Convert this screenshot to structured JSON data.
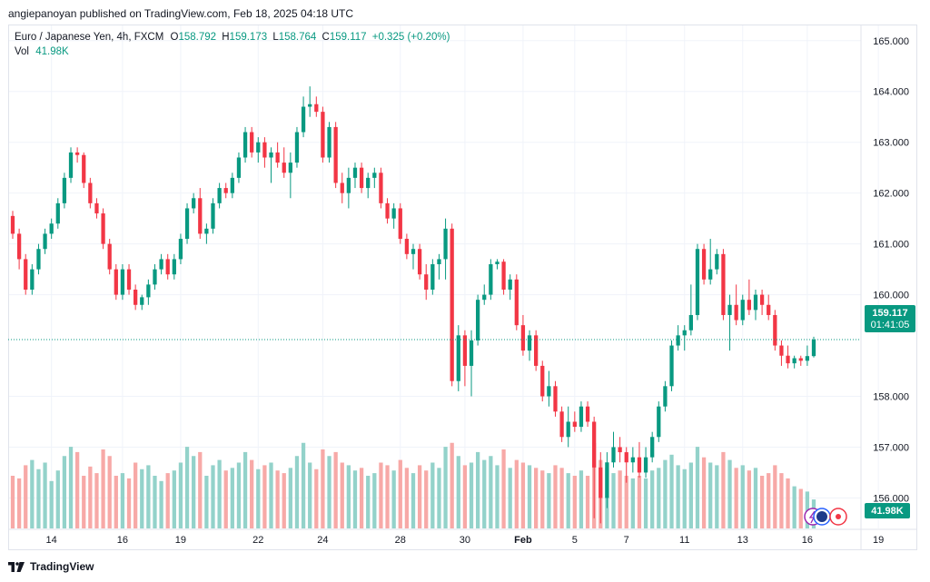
{
  "publisher_line": "angiepanoyan published on TradingView.com, Feb 18, 2025 04:18 UTC",
  "footer": {
    "brand": "TradingView"
  },
  "legend": {
    "symbol": "Euro / Japanese Yen, 4h, FXCM",
    "o_label": "O",
    "o_value": "158.792",
    "h_label": "H",
    "h_value": "159.173",
    "l_label": "L",
    "l_value": "158.764",
    "c_label": "C",
    "c_value": "159.117",
    "change": "+0.325 (+0.20%)",
    "vol_label": "Vol",
    "vol_value": "41.98K"
  },
  "badges": {
    "price": "159.117",
    "countdown": "01:41:05",
    "volume": "41.98K"
  },
  "colors": {
    "up": "#089981",
    "down": "#f23645",
    "up_vol": "#93d2ca",
    "down_vol": "#f7a9a7",
    "grid": "#f0f3fa",
    "axis_text": "#131722"
  },
  "chart_data": {
    "type": "candlestick",
    "symbol": "EUR/JPY",
    "interval": "4h",
    "source": "FXCM",
    "ylim": [
      155.4,
      165.3
    ],
    "y_ticks": [
      "165.000",
      "164.000",
      "163.000",
      "162.000",
      "161.000",
      "160.000",
      "158.000",
      "157.000",
      "156.000"
    ],
    "x_ticks": [
      "14",
      "16",
      "19",
      "22",
      "24",
      "28",
      "30",
      "Feb",
      "5",
      "7",
      "11",
      "13",
      "16",
      "19"
    ],
    "last_price": 159.117,
    "volume_unit": "relative",
    "candles": [
      [
        161.55,
        161.65,
        161.1,
        161.2,
        40
      ],
      [
        161.2,
        161.3,
        160.5,
        160.7,
        38
      ],
      [
        160.7,
        160.8,
        160.0,
        160.1,
        48
      ],
      [
        160.1,
        160.6,
        160.0,
        160.5,
        52
      ],
      [
        160.5,
        161.0,
        160.4,
        160.9,
        45
      ],
      [
        160.9,
        161.3,
        160.8,
        161.2,
        50
      ],
      [
        161.2,
        161.5,
        161.1,
        161.4,
        36
      ],
      [
        161.4,
        161.9,
        161.3,
        161.8,
        44
      ],
      [
        161.8,
        162.4,
        161.7,
        162.3,
        55
      ],
      [
        162.3,
        162.9,
        162.2,
        162.8,
        62
      ],
      [
        162.8,
        162.9,
        162.6,
        162.75,
        58
      ],
      [
        162.75,
        162.8,
        162.1,
        162.2,
        40
      ],
      [
        162.2,
        162.3,
        161.7,
        161.8,
        47
      ],
      [
        161.8,
        161.9,
        161.5,
        161.6,
        42
      ],
      [
        161.6,
        161.7,
        160.9,
        161.0,
        60
      ],
      [
        161.0,
        161.1,
        160.4,
        160.5,
        55
      ],
      [
        160.5,
        160.6,
        159.9,
        160.0,
        40
      ],
      [
        160.0,
        160.6,
        159.9,
        160.5,
        42
      ],
      [
        160.5,
        160.6,
        160.0,
        160.1,
        38
      ],
      [
        160.1,
        160.2,
        159.7,
        159.8,
        50
      ],
      [
        159.8,
        160.0,
        159.7,
        159.95,
        45
      ],
      [
        159.95,
        160.3,
        159.8,
        160.2,
        48
      ],
      [
        160.2,
        160.6,
        160.1,
        160.5,
        40
      ],
      [
        160.5,
        160.8,
        160.4,
        160.7,
        36
      ],
      [
        160.7,
        160.8,
        160.3,
        160.4,
        42
      ],
      [
        160.4,
        160.8,
        160.3,
        160.7,
        44
      ],
      [
        160.7,
        161.2,
        160.6,
        161.1,
        50
      ],
      [
        161.1,
        161.8,
        161.0,
        161.7,
        62
      ],
      [
        161.7,
        162.0,
        161.6,
        161.9,
        55
      ],
      [
        161.9,
        162.1,
        161.1,
        161.2,
        58
      ],
      [
        161.2,
        161.4,
        161.0,
        161.3,
        40
      ],
      [
        161.3,
        161.9,
        161.2,
        161.8,
        48
      ],
      [
        161.8,
        162.2,
        161.7,
        162.1,
        52
      ],
      [
        162.1,
        162.2,
        161.9,
        162.0,
        44
      ],
      [
        162.0,
        162.4,
        161.9,
        162.3,
        46
      ],
      [
        162.3,
        162.8,
        162.2,
        162.7,
        50
      ],
      [
        162.7,
        163.3,
        162.6,
        163.2,
        58
      ],
      [
        163.2,
        163.3,
        162.7,
        162.8,
        52
      ],
      [
        162.8,
        163.1,
        162.6,
        163.0,
        45
      ],
      [
        163.0,
        163.1,
        162.5,
        162.7,
        48
      ],
      [
        162.7,
        162.9,
        162.2,
        162.8,
        50
      ],
      [
        162.8,
        163.0,
        162.5,
        162.6,
        44
      ],
      [
        162.6,
        162.9,
        162.3,
        162.4,
        42
      ],
      [
        162.4,
        162.8,
        161.9,
        162.6,
        46
      ],
      [
        162.6,
        163.3,
        162.5,
        163.2,
        55
      ],
      [
        163.2,
        163.9,
        163.1,
        163.7,
        65
      ],
      [
        163.7,
        164.1,
        163.5,
        163.75,
        50
      ],
      [
        163.75,
        163.9,
        163.5,
        163.6,
        45
      ],
      [
        163.6,
        163.7,
        162.6,
        162.7,
        60
      ],
      [
        162.7,
        163.4,
        162.6,
        163.3,
        55
      ],
      [
        163.3,
        163.4,
        162.1,
        162.2,
        58
      ],
      [
        162.2,
        162.4,
        161.8,
        162.0,
        50
      ],
      [
        162.0,
        162.5,
        161.7,
        162.3,
        48
      ],
      [
        162.3,
        162.6,
        162.1,
        162.5,
        44
      ],
      [
        162.5,
        162.6,
        162.0,
        162.1,
        46
      ],
      [
        162.1,
        162.4,
        161.9,
        162.3,
        40
      ],
      [
        162.3,
        162.5,
        162.1,
        162.4,
        42
      ],
      [
        162.4,
        162.5,
        161.7,
        161.8,
        50
      ],
      [
        161.8,
        161.9,
        161.4,
        161.5,
        48
      ],
      [
        161.5,
        161.8,
        161.3,
        161.7,
        44
      ],
      [
        161.7,
        161.8,
        161.0,
        161.1,
        52
      ],
      [
        161.1,
        161.2,
        160.7,
        160.8,
        46
      ],
      [
        160.8,
        161.0,
        160.5,
        160.9,
        42
      ],
      [
        160.9,
        161.0,
        160.3,
        160.4,
        48
      ],
      [
        160.4,
        160.6,
        159.9,
        160.1,
        44
      ],
      [
        160.1,
        160.7,
        160.0,
        160.6,
        50
      ],
      [
        160.6,
        160.8,
        160.3,
        160.7,
        46
      ],
      [
        160.7,
        161.5,
        160.3,
        161.3,
        62
      ],
      [
        161.3,
        161.4,
        158.2,
        158.3,
        65
      ],
      [
        158.3,
        159.4,
        158.1,
        159.2,
        55
      ],
      [
        159.2,
        159.3,
        158.2,
        158.6,
        48
      ],
      [
        158.6,
        159.3,
        158.0,
        159.1,
        50
      ],
      [
        159.1,
        160.0,
        159.0,
        159.9,
        58
      ],
      [
        159.9,
        160.2,
        159.8,
        160.0,
        52
      ],
      [
        160.0,
        160.7,
        159.9,
        160.6,
        55
      ],
      [
        160.6,
        160.7,
        160.5,
        160.65,
        48
      ],
      [
        160.65,
        160.7,
        160.0,
        160.1,
        60
      ],
      [
        160.1,
        160.4,
        159.9,
        160.3,
        46
      ],
      [
        160.3,
        160.4,
        159.3,
        159.4,
        52
      ],
      [
        159.4,
        159.6,
        158.8,
        158.9,
        50
      ],
      [
        158.9,
        159.3,
        158.7,
        159.2,
        48
      ],
      [
        159.2,
        159.3,
        158.5,
        158.6,
        46
      ],
      [
        158.6,
        158.7,
        157.9,
        158.0,
        44
      ],
      [
        158.0,
        158.5,
        157.8,
        158.2,
        42
      ],
      [
        158.2,
        158.3,
        157.6,
        157.7,
        48
      ],
      [
        157.7,
        157.8,
        157.1,
        157.2,
        46
      ],
      [
        157.2,
        157.8,
        157.0,
        157.5,
        42
      ],
      [
        157.5,
        157.7,
        157.3,
        157.4,
        40
      ],
      [
        157.4,
        157.9,
        157.3,
        157.8,
        44
      ],
      [
        157.8,
        157.9,
        157.4,
        157.5,
        40
      ],
      [
        157.5,
        157.6,
        155.6,
        156.6,
        65
      ],
      [
        156.6,
        156.9,
        155.5,
        156.0,
        52
      ],
      [
        156.0,
        156.9,
        155.8,
        156.7,
        46
      ],
      [
        156.7,
        157.3,
        156.6,
        157.0,
        42
      ],
      [
        157.0,
        157.2,
        156.7,
        156.9,
        44
      ],
      [
        156.9,
        157.0,
        156.3,
        156.7,
        40
      ],
      [
        156.7,
        157.0,
        156.5,
        156.8,
        38
      ],
      [
        156.8,
        157.1,
        156.4,
        156.5,
        40
      ],
      [
        156.5,
        157.0,
        156.4,
        156.8,
        38
      ],
      [
        156.8,
        157.3,
        156.7,
        157.2,
        44
      ],
      [
        157.2,
        157.9,
        157.1,
        157.8,
        46
      ],
      [
        157.8,
        158.3,
        157.7,
        158.2,
        52
      ],
      [
        158.2,
        159.1,
        158.1,
        159.0,
        56
      ],
      [
        159.0,
        159.4,
        158.9,
        159.2,
        48
      ],
      [
        159.2,
        159.4,
        158.9,
        159.3,
        45
      ],
      [
        159.3,
        160.2,
        159.2,
        159.6,
        50
      ],
      [
        159.6,
        161.0,
        159.5,
        160.9,
        62
      ],
      [
        160.9,
        161.0,
        160.2,
        160.3,
        54
      ],
      [
        160.3,
        161.1,
        160.2,
        160.5,
        50
      ],
      [
        160.5,
        160.9,
        160.4,
        160.8,
        48
      ],
      [
        160.8,
        160.9,
        159.5,
        159.6,
        58
      ],
      [
        159.6,
        160.0,
        158.9,
        159.8,
        52
      ],
      [
        159.8,
        160.2,
        159.4,
        159.5,
        46
      ],
      [
        159.5,
        160.0,
        159.4,
        159.9,
        48
      ],
      [
        159.9,
        160.3,
        159.6,
        159.7,
        44
      ],
      [
        159.7,
        160.1,
        159.5,
        160.0,
        46
      ],
      [
        160.0,
        160.1,
        159.6,
        159.8,
        40
      ],
      [
        159.8,
        160.0,
        159.5,
        159.6,
        42
      ],
      [
        159.6,
        159.7,
        158.9,
        159.0,
        48
      ],
      [
        159.0,
        159.1,
        158.6,
        158.8,
        42
      ],
      [
        158.8,
        159.0,
        158.55,
        158.65,
        38
      ],
      [
        158.65,
        158.8,
        158.55,
        158.75,
        32
      ],
      [
        158.75,
        158.8,
        158.6,
        158.7,
        30
      ],
      [
        158.7,
        159.0,
        158.6,
        158.792,
        28
      ],
      [
        158.792,
        159.173,
        158.764,
        159.117,
        22
      ]
    ]
  }
}
